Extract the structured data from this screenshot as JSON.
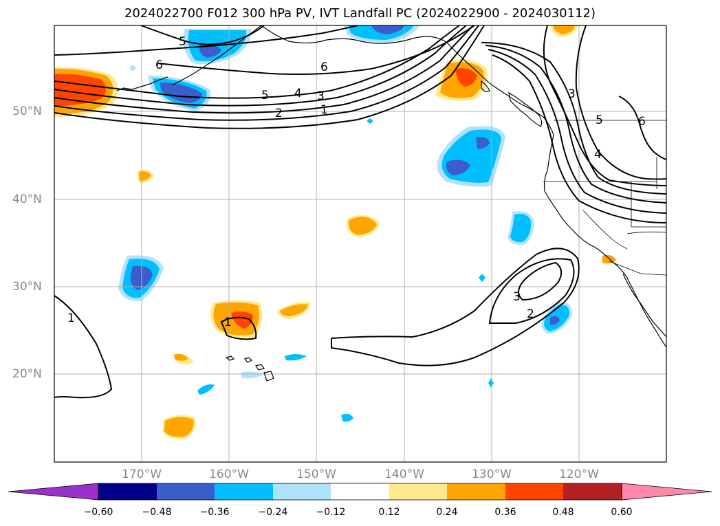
{
  "title": "2024022700 F012 300 hPa PV, IVT Landfall PC (2024022900 - 2024030112)",
  "lat_labels": [
    "50°N",
    "40°N",
    "30°N",
    "20°N"
  ],
  "lon_labels": [
    "170°W",
    "160°W",
    "150°W",
    "140°W",
    "130°W",
    "120°W"
  ],
  "contour_labels": {
    "north": [
      "5",
      "6",
      "6",
      "5",
      "4",
      "3",
      "2",
      "1"
    ],
    "east": [
      "3",
      "5",
      "6",
      "4"
    ],
    "subtropical": [
      "3",
      "2",
      "1",
      "1"
    ]
  },
  "colorbar": {
    "tick_labels": [
      "−0.60",
      "−0.48",
      "−0.36",
      "−0.24",
      "−0.12",
      "0.12",
      "0.24",
      "0.36",
      "0.48",
      "0.60"
    ],
    "colors": [
      "#9932cc",
      "#00008b",
      "#3a5fcd",
      "#00bfff",
      "#afe3fb",
      "#ffffff",
      "#ffe98a",
      "#ffa500",
      "#ff4500",
      "#b22222",
      "#ff88aa",
      "#ff88aa"
    ]
  },
  "colors": {
    "land_outline": "#000000",
    "grid": "#b0b0b0",
    "contour": "#000000"
  }
}
